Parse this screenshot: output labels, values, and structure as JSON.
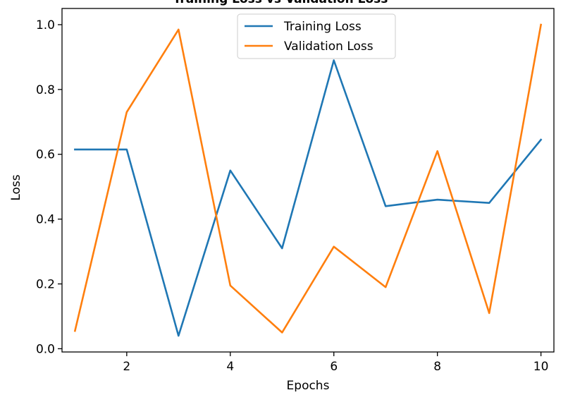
{
  "chart_data": {
    "type": "line",
    "title": "Training Loss vs Validation Loss",
    "xlabel": "Epochs",
    "ylabel": "Loss",
    "x": [
      1,
      2,
      3,
      4,
      5,
      6,
      7,
      8,
      9,
      10
    ],
    "xlim": [
      0.75,
      10.25
    ],
    "ylim": [
      -0.01,
      1.05
    ],
    "xticks": [
      2,
      4,
      6,
      8,
      10
    ],
    "yticks": [
      0.0,
      0.2,
      0.4,
      0.6,
      0.8,
      1.0
    ],
    "xtick_labels": [
      "2",
      "4",
      "6",
      "8",
      "10"
    ],
    "ytick_labels": [
      "0.0",
      "0.2",
      "0.4",
      "0.6",
      "0.8",
      "1.0"
    ],
    "grid": false,
    "legend_position": "top-center",
    "series": [
      {
        "name": "Training Loss",
        "color": "#1f77b4",
        "values": [
          0.615,
          0.615,
          0.04,
          0.55,
          0.31,
          0.89,
          0.44,
          0.46,
          0.45,
          0.645
        ]
      },
      {
        "name": "Validation Loss",
        "color": "#ff7f0e",
        "values": [
          0.055,
          0.73,
          0.985,
          0.195,
          0.05,
          0.315,
          0.19,
          0.61,
          0.11,
          1.0
        ]
      }
    ]
  }
}
